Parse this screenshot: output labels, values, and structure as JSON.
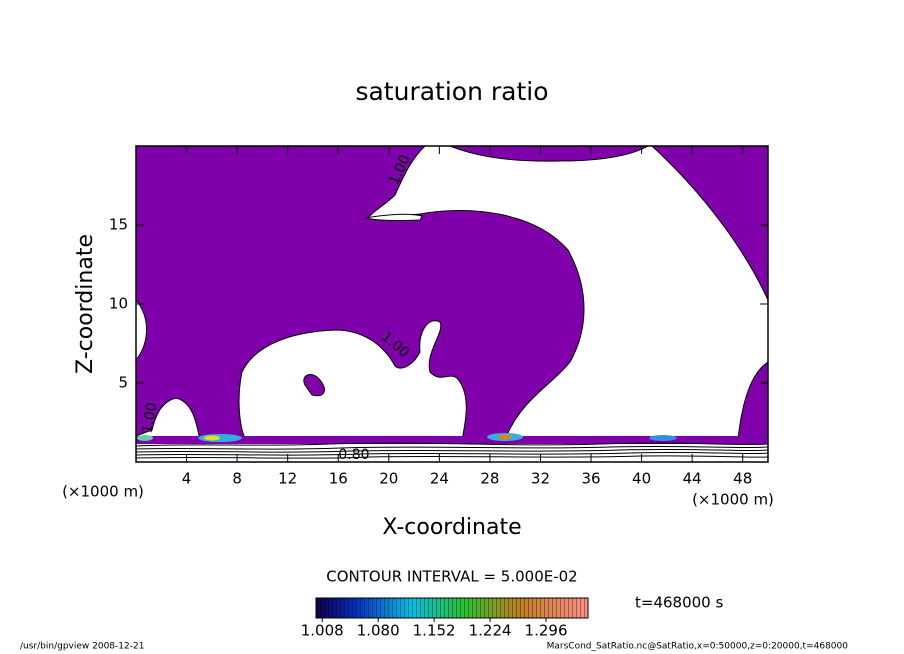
{
  "chart_data": {
    "type": "contour",
    "title": "saturation ratio",
    "xlabel": "X-coordinate",
    "ylabel": "Z-coordinate",
    "xunit": "(×1000 m)",
    "yunit": "(×1000 m)",
    "xlim": [
      0,
      50
    ],
    "xticks": [
      4,
      8,
      12,
      16,
      20,
      24,
      28,
      32,
      36,
      40,
      44,
      48
    ],
    "ylim": [
      0,
      20
    ],
    "yticks": [
      5,
      10,
      15
    ],
    "fill_color": "#7f00aa",
    "contour_labels": [
      "1.00",
      "1.00",
      "1.00",
      "0.80"
    ],
    "contour_interval": "CONTOUR INTERVAL = 5.000E-02",
    "colorbar": {
      "clim": [
        1.0,
        1.35
      ],
      "ticks": [
        1.008,
        {
          "value": 1.08,
          "label": "1.080"
        },
        1.152,
        1.224,
        1.296
      ]
    },
    "time": "t=468000 s",
    "footer_left": "/usr/bin/gpview   2008-12-21",
    "footer_right": "MarsCond_SatRatio.nc@SatRatio,x=0:50000,z=0:20000,t=468000"
  }
}
